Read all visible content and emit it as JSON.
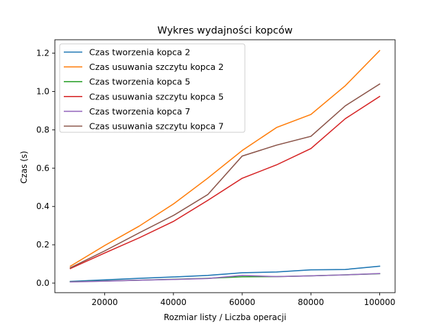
{
  "chart_data": {
    "type": "line",
    "title": "Wykres wydajności kopców",
    "xlabel": "Rozmiar listy / Liczba operacji",
    "ylabel": "Czas (s)",
    "xlim": [
      5500,
      104500
    ],
    "ylim": [
      -0.05,
      1.27
    ],
    "xticks": [
      20000,
      40000,
      60000,
      80000,
      100000
    ],
    "yticks": [
      0.0,
      0.2,
      0.4,
      0.6,
      0.8,
      1.0,
      1.2
    ],
    "ytick_labels": [
      "0.0",
      "0.2",
      "0.4",
      "0.6",
      "0.8",
      "1.0",
      "1.2"
    ],
    "grid": false,
    "legend_position": "top-left",
    "x": [
      10000,
      20000,
      30000,
      40000,
      50000,
      60000,
      70000,
      80000,
      90000,
      100000
    ],
    "series": [
      {
        "name": "Czas tworzenia kopca 2",
        "color": "#1f77b4",
        "values": [
          0.009,
          0.017,
          0.025,
          0.032,
          0.04,
          0.054,
          0.058,
          0.069,
          0.071,
          0.088
        ]
      },
      {
        "name": "Czas usuwania szczytu kopca 2",
        "color": "#ff7f0e",
        "values": [
          0.088,
          0.196,
          0.297,
          0.413,
          0.548,
          0.692,
          0.812,
          0.88,
          1.03,
          1.213
        ]
      },
      {
        "name": "Czas tworzenia kopca 5",
        "color": "#2ca02c",
        "values": [
          0.007,
          0.011,
          0.015,
          0.02,
          0.025,
          0.033,
          0.034,
          0.038,
          0.043,
          0.049
        ]
      },
      {
        "name": "Czas usuwania szczytu kopca 5",
        "color": "#d62728",
        "values": [
          0.076,
          0.157,
          0.236,
          0.322,
          0.432,
          0.547,
          0.617,
          0.702,
          0.858,
          0.974
        ]
      },
      {
        "name": "Czas tworzenia kopca 7",
        "color": "#9467bd",
        "values": [
          0.006,
          0.01,
          0.015,
          0.019,
          0.024,
          0.04,
          0.034,
          0.038,
          0.043,
          0.05
        ]
      },
      {
        "name": "Czas usuwania szczytu kopca 7",
        "color": "#8c564b",
        "values": [
          0.08,
          0.168,
          0.262,
          0.353,
          0.462,
          0.663,
          0.72,
          0.766,
          0.925,
          1.039
        ]
      }
    ]
  }
}
